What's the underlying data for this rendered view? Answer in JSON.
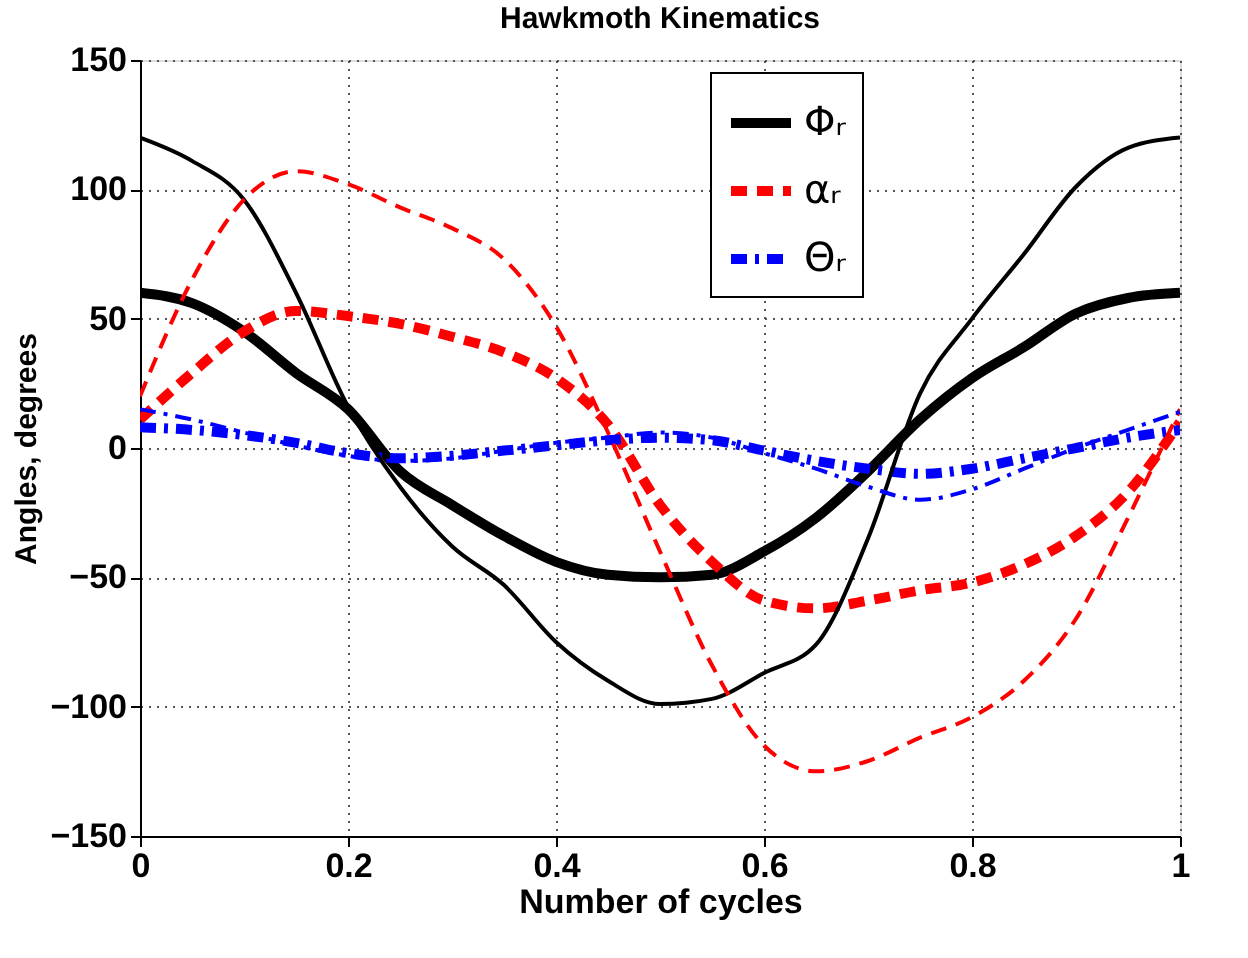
{
  "chart_data": {
    "type": "line",
    "title": "Hawkmoth Kinematics",
    "xlabel": "Number of cycles",
    "ylabel": "Angles, degrees",
    "x": [
      0,
      0.05,
      0.1,
      0.15,
      0.2,
      0.25,
      0.3,
      0.35,
      0.4,
      0.45,
      0.5,
      0.55,
      0.6,
      0.65,
      0.7,
      0.75,
      0.8,
      0.85,
      0.9,
      0.95,
      1
    ],
    "series": [
      {
        "name": "Φᵣ",
        "color": "#000000",
        "line_style": "solid",
        "values": [
          60,
          56,
          45,
          29,
          15,
          -9,
          -22,
          -34,
          -44,
          -49,
          -50,
          -49,
          -40,
          -27,
          -9,
          11,
          27,
          39,
          52,
          58,
          60
        ]
      },
      {
        "name": "αᵣ",
        "color": "#ff0000",
        "line_style": "dashed",
        "values": [
          11,
          29,
          45,
          53,
          51,
          48,
          43,
          37,
          27,
          9,
          -22,
          -44,
          -59,
          -62,
          -59,
          -55,
          -52,
          -45,
          -34,
          -17,
          10
        ]
      },
      {
        "name": "Θᵣ",
        "color": "#0000ff",
        "line_style": "dashdot",
        "values": [
          8,
          7,
          5,
          2,
          -2,
          -4,
          -3,
          -1,
          1,
          3,
          4,
          3,
          -1,
          -5,
          -8,
          -10,
          -8,
          -4,
          0,
          4,
          7
        ]
      },
      {
        "color": "#000000",
        "line_style": "solid",
        "values": [
          120,
          111,
          96,
          60,
          16,
          -15,
          -38,
          -53,
          -75,
          -90,
          -99,
          -97,
          -87,
          -76,
          -35,
          21,
          50,
          75,
          101,
          116,
          120
        ]
      },
      {
        "color": "#ff0000",
        "line_style": "dashed",
        "values": [
          20,
          65,
          96,
          107,
          102,
          93,
          85,
          73,
          47,
          6,
          -40,
          -84,
          -115,
          -125,
          -121,
          -112,
          -104,
          -90,
          -66,
          -27,
          15
        ]
      },
      {
        "color": "#0000ff",
        "line_style": "dashdot",
        "values": [
          15,
          11,
          6,
          1,
          -3,
          -5,
          -4,
          -1,
          2,
          4,
          6,
          4,
          -2,
          -8,
          -15,
          -20,
          -16,
          -8,
          0,
          7,
          14
        ]
      }
    ],
    "xlim": [
      0,
      1
    ],
    "ylim": [
      -150,
      150
    ],
    "xticks": [
      0,
      0.2,
      0.4,
      0.6,
      0.8,
      1
    ],
    "yticks": [
      -150,
      -100,
      -50,
      0,
      50,
      100,
      150
    ],
    "grid": true,
    "legend": "top right"
  }
}
